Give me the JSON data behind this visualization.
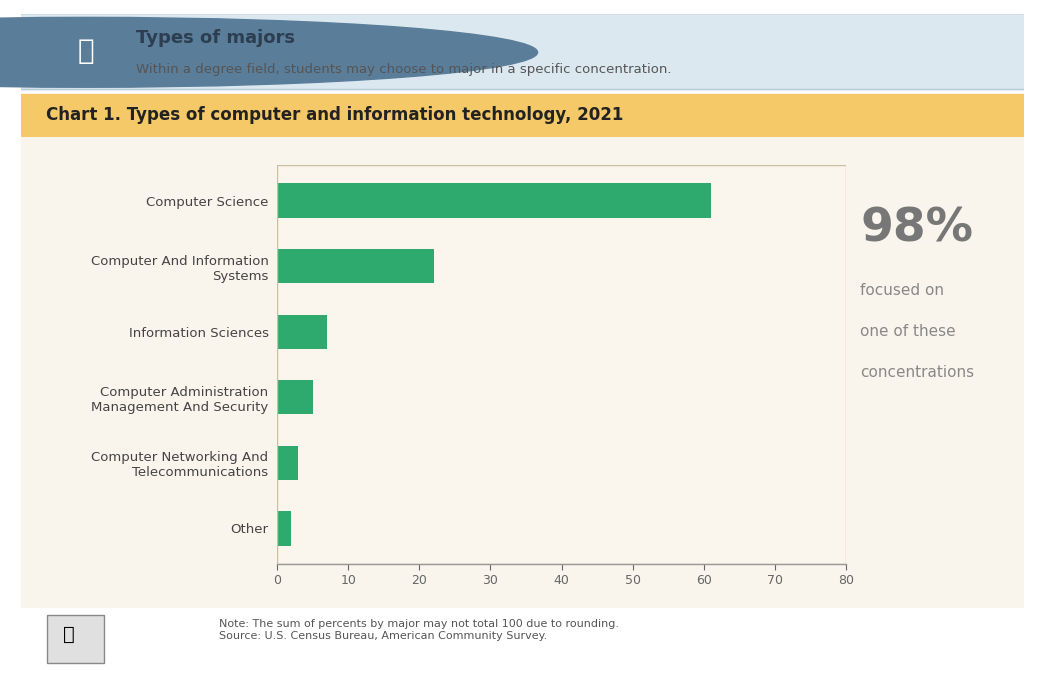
{
  "title": "Chart 1. Types of computer and information technology, 2021",
  "categories": [
    "Computer Science",
    "Computer And Information\nSystems",
    "Information Sciences",
    "Computer Administration\nManagement And Security",
    "Computer Networking And\nTelecommunications",
    "Other"
  ],
  "values": [
    61,
    22,
    7,
    5,
    3,
    2
  ],
  "bar_color": "#2eaa6e",
  "bg_color_outer": "#faf5ec",
  "bg_color_chart": "#faf6ee",
  "header_bg_color": "#f5c967",
  "top_banner_bg": "#dce8f0",
  "top_banner_border": "#b8ced9",
  "fig_bg": "#ffffff",
  "outer_card_border": "#d5c9a0",
  "xlim": [
    0,
    80
  ],
  "xticks": [
    0,
    10,
    20,
    30,
    40,
    50,
    60,
    70,
    80
  ],
  "stat_value": "98%",
  "stat_line1": "focused on",
  "stat_line2": "one of these",
  "stat_line3": "concentrations",
  "stat_color": "#888888",
  "stat_value_color": "#777777",
  "note_text": "Note: The sum of percents by major may not total 100 due to rounding.\nSource: U.S. Census Bureau, American Community Survey.",
  "top_title": "Types of majors",
  "top_subtitle": "Within a degree field, students may choose to major in a specific concentration.",
  "icon_circle_color": "#5a7d99",
  "spine_bottom_color": "#999999"
}
